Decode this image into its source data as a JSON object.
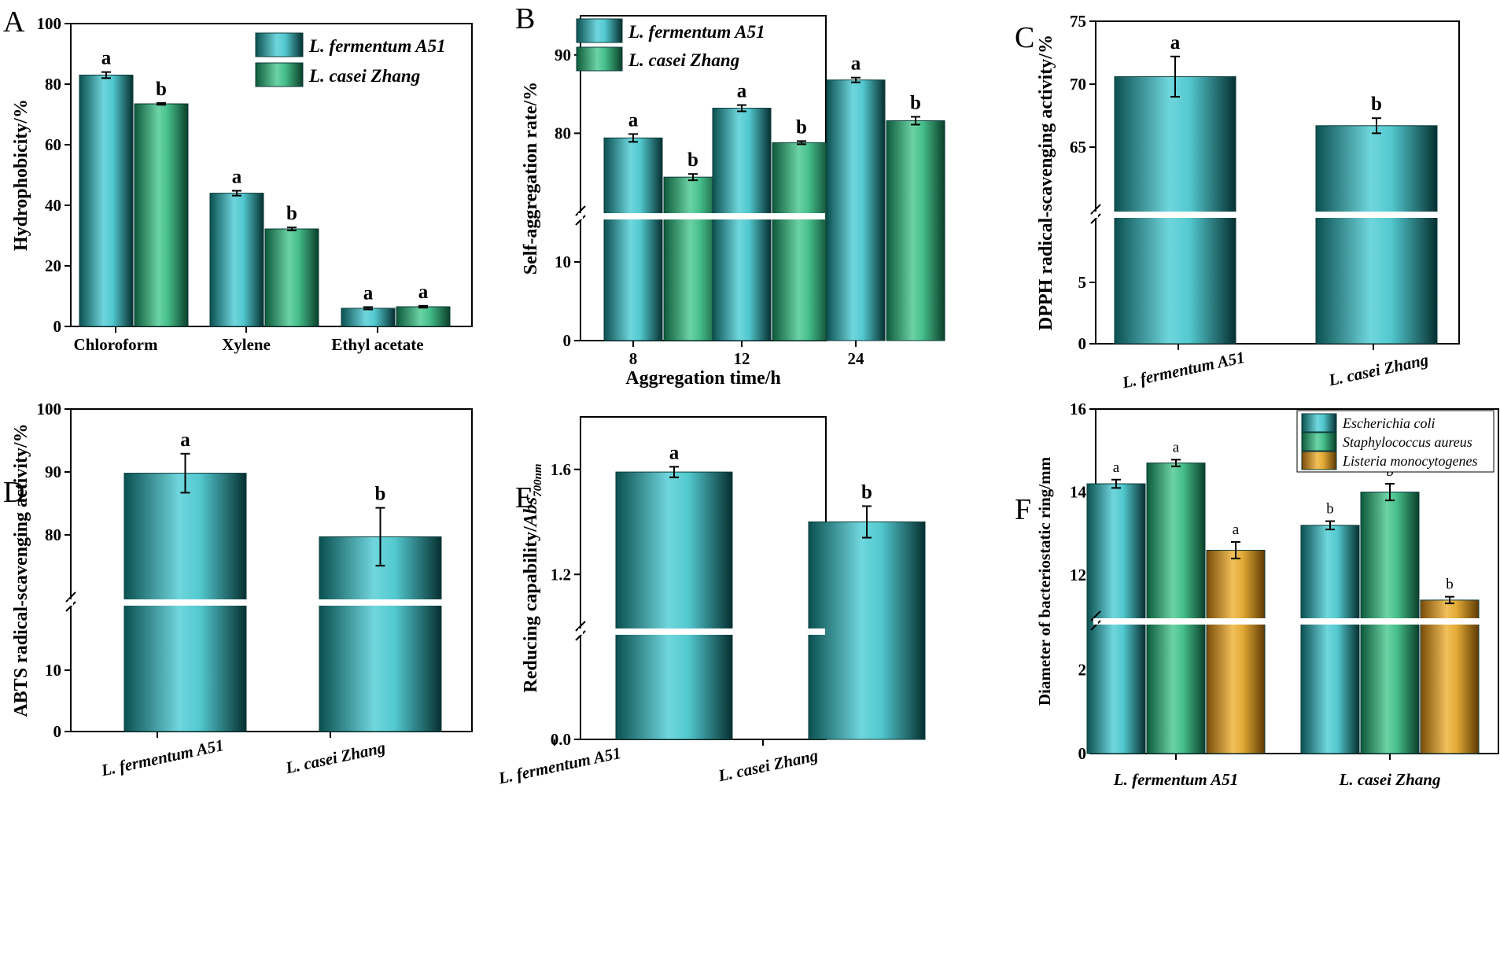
{
  "chart_data": [
    {
      "panel": "A",
      "type": "bar",
      "categories": [
        "Chloroform",
        "Xylene",
        "Ethyl acetate"
      ],
      "series": [
        {
          "name": "L. fermentum A51",
          "values": [
            83,
            44,
            6
          ],
          "errors": [
            1.0,
            0.8,
            0.4
          ],
          "letters": [
            "a",
            "a",
            "a"
          ]
        },
        {
          "name": "L. casei Zhang",
          "values": [
            73.5,
            32.2,
            6.5
          ],
          "errors": [
            0.3,
            0.5,
            0.3
          ],
          "letters": [
            "b",
            "b",
            "a"
          ]
        }
      ],
      "xlabel": "",
      "ylabel": "Hydrophobicity/%",
      "ylim": [
        0,
        100
      ],
      "yticks": [
        "0",
        "20",
        "40",
        "60",
        "80",
        "100"
      ],
      "legend": "top-right"
    },
    {
      "panel": "B",
      "type": "bar",
      "categories": [
        "8",
        "12",
        "24"
      ],
      "series": [
        {
          "name": "L. fermentum A51",
          "values": [
            79.4,
            83.2,
            86.8
          ],
          "errors": [
            0.5,
            0.4,
            0.3
          ],
          "letters": [
            "a",
            "a",
            "a"
          ]
        },
        {
          "name": "L. casei Zhang",
          "values": [
            74.4,
            78.8,
            81.6
          ],
          "errors": [
            0.4,
            0.2,
            0.5
          ],
          "letters": [
            "b",
            "b",
            "b"
          ]
        }
      ],
      "xlabel": "Aggregation time/h",
      "ylabel": "Self-aggregation rate/%",
      "ylim": [
        0,
        95
      ],
      "axis_break": [
        15,
        70
      ],
      "yticks": [
        "0",
        "10",
        "80",
        "90"
      ],
      "legend": "top-left"
    },
    {
      "panel": "C",
      "type": "bar",
      "categories": [
        "L. fermentum A51",
        "L. casei Zhang"
      ],
      "series": [
        {
          "name": "DPPH",
          "values": [
            70.6,
            66.7
          ],
          "errors": [
            1.6,
            0.6
          ],
          "letters": [
            "a",
            "b"
          ]
        }
      ],
      "xlabel": "",
      "ylabel": "DPPH radical-scavenging activity/%",
      "ylim": [
        0,
        75
      ],
      "axis_break": [
        10,
        60
      ],
      "yticks": [
        "0",
        "5",
        "65",
        "70",
        "75"
      ]
    },
    {
      "panel": "D",
      "type": "bar",
      "categories": [
        "L. fermentum A51",
        "L. casei Zhang"
      ],
      "series": [
        {
          "name": "ABTS",
          "values": [
            89.8,
            79.7
          ],
          "errors": [
            3.1,
            4.6
          ],
          "letters": [
            "a",
            "b"
          ]
        }
      ],
      "xlabel": "",
      "ylabel": "ABTS radical-scavenging activity/%",
      "ylim": [
        0,
        100
      ],
      "axis_break": [
        20,
        70
      ],
      "yticks": [
        "0",
        "10",
        "80",
        "90",
        "100"
      ]
    },
    {
      "panel": "E",
      "type": "bar",
      "categories": [
        "L. fermentum A51",
        "L. casei Zhang"
      ],
      "series": [
        {
          "name": "Reducing capability",
          "values": [
            1.59,
            1.4
          ],
          "errors": [
            0.02,
            0.06
          ],
          "letters": [
            "a",
            "b"
          ]
        }
      ],
      "xlabel": "",
      "ylabel": "Reducing capability/Abs",
      "ylabel_subscript": "700nm",
      "ylim": [
        0,
        1.8
      ],
      "axis_break": [
        0.3,
        1.0
      ],
      "yticks": [
        "0.0",
        "1.2",
        "1.6"
      ]
    },
    {
      "panel": "F",
      "type": "bar",
      "categories": [
        "L. fermentum A51",
        "L. casei Zhang"
      ],
      "series": [
        {
          "name": "Escherichia coli",
          "values": [
            14.2,
            13.2
          ],
          "errors": [
            0.1,
            0.1
          ],
          "letters": [
            "a",
            "b"
          ]
        },
        {
          "name": "Staphylococcus aureus",
          "values": [
            14.7,
            14.0
          ],
          "errors": [
            0.08,
            0.2
          ],
          "letters": [
            "a",
            "b"
          ]
        },
        {
          "name": "Listeria monocytogenes",
          "values": [
            12.6,
            11.4
          ],
          "errors": [
            0.2,
            0.08
          ],
          "letters": [
            "a",
            "b"
          ]
        }
      ],
      "xlabel": "",
      "ylabel": "Diameter of bacteriostatic ring/mm",
      "ylim": [
        0,
        16
      ],
      "axis_break": [
        3,
        11
      ],
      "yticks": [
        "0",
        "2",
        "12",
        "14",
        "16"
      ],
      "legend": "top-right"
    }
  ],
  "colors": {
    "teal": "#1bb8b8",
    "teal_dark": "#073f3f",
    "green": "#35b483",
    "green_dark": "#0a4d35",
    "gold": "#dfa22a",
    "gold_dark": "#6f4608"
  }
}
